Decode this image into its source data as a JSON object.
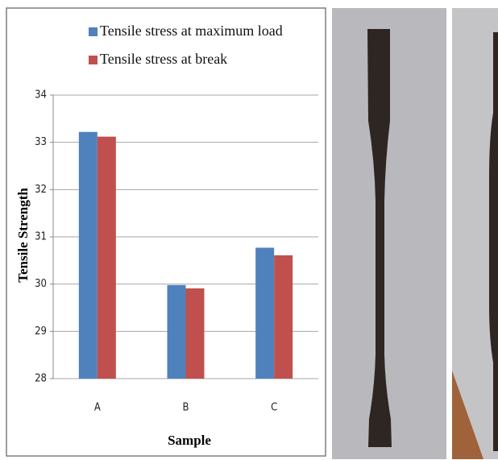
{
  "chart_data": {
    "type": "bar",
    "x_label": "Sample",
    "y_label": "Tensile Strength",
    "categories": [
      "A",
      "B",
      "C"
    ],
    "series": [
      {
        "name": "Tensile stress at maximum load",
        "color": "#4f81bd",
        "values": [
          33.22,
          29.98,
          30.77
        ]
      },
      {
        "name": "Tensile stress at break",
        "color": "#c0504d",
        "values": [
          33.12,
          29.91,
          30.61
        ]
      }
    ],
    "ylim": [
      28,
      34
    ],
    "yticks": [
      28,
      29,
      30,
      31,
      32,
      33,
      34
    ],
    "grid": true
  }
}
